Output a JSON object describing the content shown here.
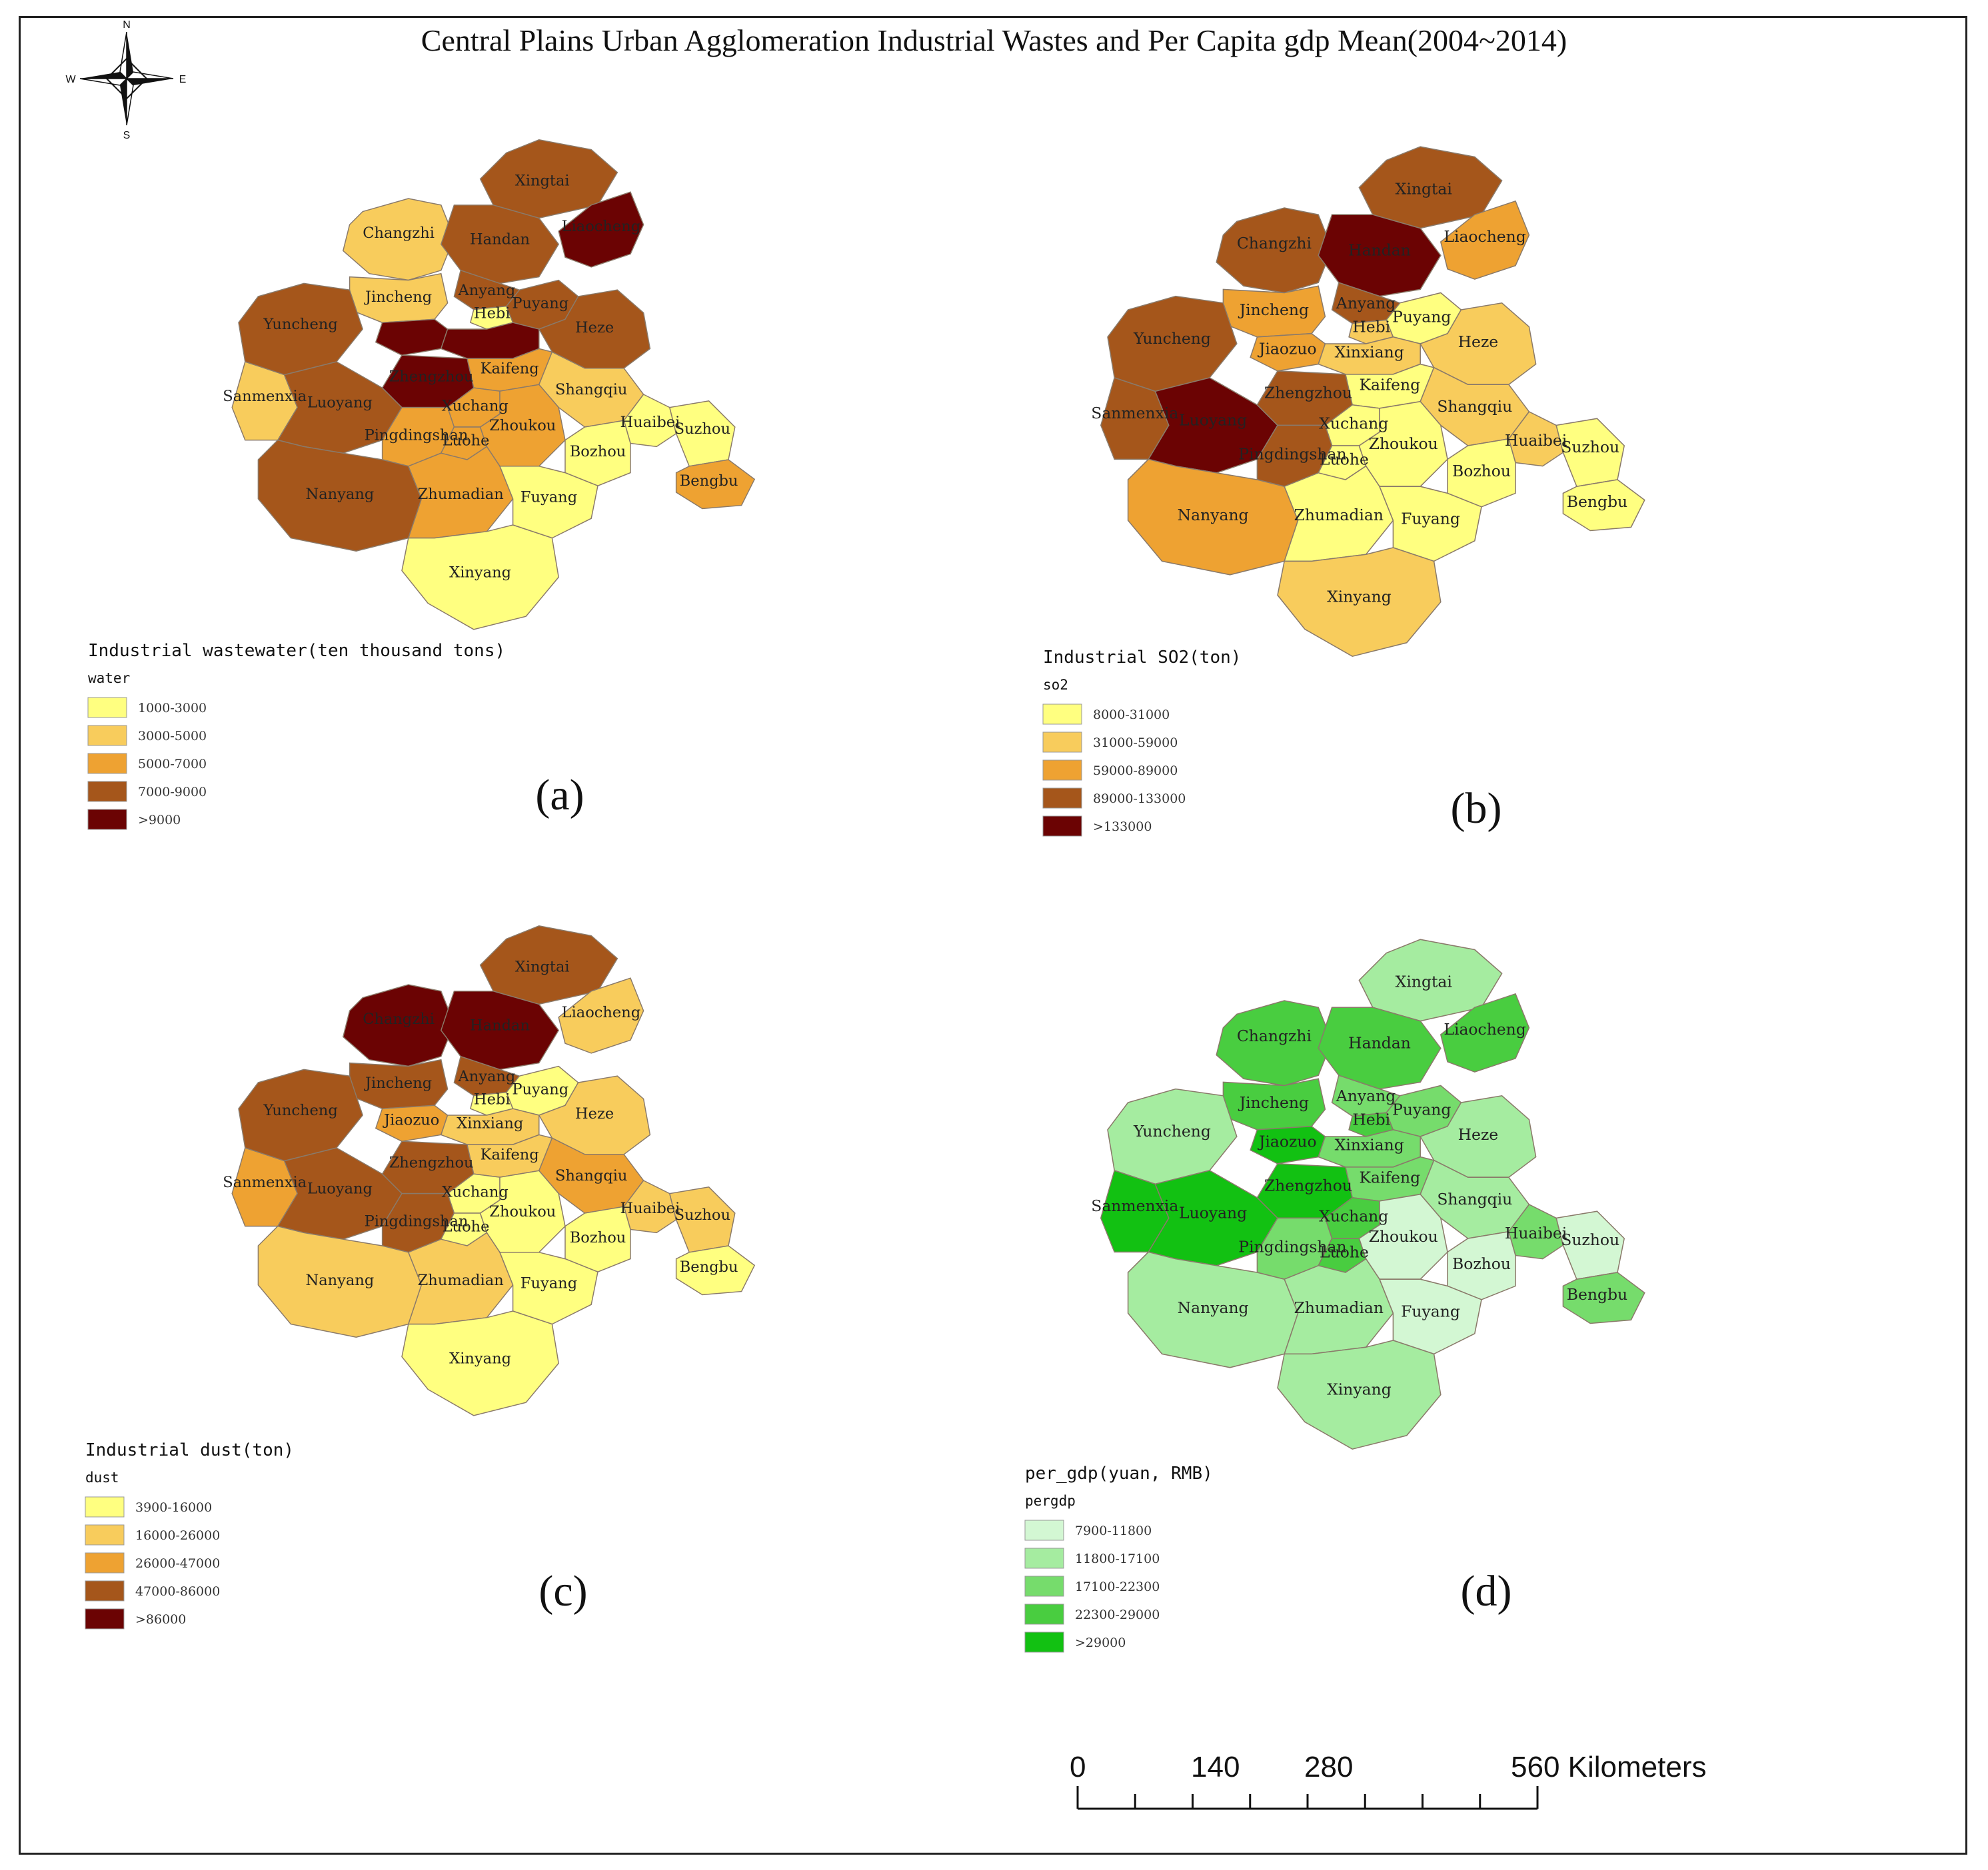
{
  "title": "Central Plains Urban Agglomeration Industrial Wastes and Per Capita gdp Mean(2004~2014)",
  "compass": {
    "n": "N",
    "s": "S",
    "e": "E",
    "w": "W"
  },
  "panels": [
    {
      "letter": "(a)",
      "legend_title": "Industrial wastewater(ten thousand tons)",
      "field": "water",
      "classes": [
        {
          "range": "1000-3000",
          "color": "#ffff80"
        },
        {
          "range": "3000-5000",
          "color": "#f8cc5c"
        },
        {
          "range": "5000-7000",
          "color": "#eea232"
        },
        {
          "range": "7000-9000",
          "color": "#a5561b"
        },
        {
          "range": ">9000",
          "color": "#6b0303"
        }
      ],
      "cities": {
        "Xingtai": 3,
        "Changzhi": 1,
        "Handan": 3,
        "Liaocheng": 4,
        "Anyang": 3,
        "Jincheng": 1,
        "Hebi": 0,
        "Puyang": 3,
        "Yuncheng": 3,
        "Jiaozuo": 4,
        "Xinxiang": 4,
        "Heze": 3,
        "Zhengzhou": 4,
        "Sanmenxia": 1,
        "Luoyang": 3,
        "Kaifeng": 2,
        "Shangqiu": 1,
        "Xuchang": 2,
        "Pingdingshan": 2,
        "Luohe": 2,
        "Zhoukou": 2,
        "Huaibei": 0,
        "Suzhou": 0,
        "Bozhou": 0,
        "Bengbu": 2,
        "Nanyang": 3,
        "Zhumadian": 2,
        "Fuyang": 0,
        "Xinyang": 0
      },
      "hidden_labels": [
        "Jiaozuo",
        "Xinxiang"
      ]
    },
    {
      "letter": "(b)",
      "legend_title": "Industrial SO2(ton)",
      "field": "so2",
      "classes": [
        {
          "range": "8000-31000",
          "color": "#ffff80"
        },
        {
          "range": "31000-59000",
          "color": "#f8cc5c"
        },
        {
          "range": "59000-89000",
          "color": "#eea232"
        },
        {
          "range": "89000-133000",
          "color": "#a5561b"
        },
        {
          "range": ">133000",
          "color": "#6b0303"
        }
      ],
      "cities": {
        "Xingtai": 3,
        "Changzhi": 3,
        "Handan": 4,
        "Liaocheng": 2,
        "Anyang": 3,
        "Jincheng": 2,
        "Hebi": 1,
        "Puyang": 0,
        "Yuncheng": 3,
        "Jiaozuo": 2,
        "Xinxiang": 1,
        "Heze": 1,
        "Zhengzhou": 3,
        "Sanmenxia": 3,
        "Luoyang": 4,
        "Kaifeng": 0,
        "Shangqiu": 1,
        "Xuchang": 0,
        "Pingdingshan": 3,
        "Luohe": 0,
        "Zhoukou": 0,
        "Huaibei": 1,
        "Suzhou": 0,
        "Bozhou": 0,
        "Bengbu": 0,
        "Nanyang": 2,
        "Zhumadian": 0,
        "Fuyang": 0,
        "Xinyang": 1
      },
      "hidden_labels": []
    },
    {
      "letter": "(c)",
      "legend_title": "Industrial dust(ton)",
      "field": "dust",
      "classes": [
        {
          "range": "3900-16000",
          "color": "#ffff80"
        },
        {
          "range": "16000-26000",
          "color": "#f8cc5c"
        },
        {
          "range": "26000-47000",
          "color": "#eea232"
        },
        {
          "range": "47000-86000",
          "color": "#a5561b"
        },
        {
          "range": ">86000",
          "color": "#6b0303"
        }
      ],
      "cities": {
        "Xingtai": 3,
        "Changzhi": 4,
        "Handan": 4,
        "Liaocheng": 1,
        "Anyang": 3,
        "Jincheng": 3,
        "Hebi": 0,
        "Puyang": 0,
        "Yuncheng": 3,
        "Jiaozuo": 2,
        "Xinxiang": 1,
        "Heze": 1,
        "Zhengzhou": 3,
        "Sanmenxia": 2,
        "Luoyang": 3,
        "Kaifeng": 1,
        "Shangqiu": 2,
        "Xuchang": 0,
        "Pingdingshan": 3,
        "Luohe": 0,
        "Zhoukou": 0,
        "Huaibei": 1,
        "Suzhou": 1,
        "Bozhou": 0,
        "Bengbu": 0,
        "Nanyang": 1,
        "Zhumadian": 1,
        "Fuyang": 0,
        "Xinyang": 0
      },
      "hidden_labels": []
    },
    {
      "letter": "(d)",
      "legend_title": "per_gdp(yuan, RMB)",
      "field": "pergdp",
      "classes": [
        {
          "range": "7900-11800",
          "color": "#d3f7d3"
        },
        {
          "range": "11800-17100",
          "color": "#a5eca0"
        },
        {
          "range": "17100-22300",
          "color": "#76dc6c"
        },
        {
          "range": "22300-29000",
          "color": "#49cd40"
        },
        {
          "range": ">29000",
          "color": "#12c112"
        }
      ],
      "cities": {
        "Xingtai": 1,
        "Changzhi": 3,
        "Handan": 3,
        "Liaocheng": 3,
        "Anyang": 2,
        "Jincheng": 3,
        "Hebi": 3,
        "Puyang": 2,
        "Yuncheng": 1,
        "Jiaozuo": 4,
        "Xinxiang": 2,
        "Heze": 1,
        "Zhengzhou": 4,
        "Sanmenxia": 4,
        "Luoyang": 4,
        "Kaifeng": 2,
        "Shangqiu": 1,
        "Xuchang": 3,
        "Pingdingshan": 2,
        "Luohe": 3,
        "Zhoukou": 0,
        "Huaibei": 2,
        "Suzhou": 0,
        "Bozhou": 0,
        "Bengbu": 2,
        "Nanyang": 1,
        "Zhumadian": 1,
        "Fuyang": 0,
        "Xinyang": 1
      },
      "hidden_labels": []
    }
  ],
  "scale_bar": {
    "labels": [
      "0",
      "140",
      "280",
      "560 Kilometers"
    ]
  }
}
